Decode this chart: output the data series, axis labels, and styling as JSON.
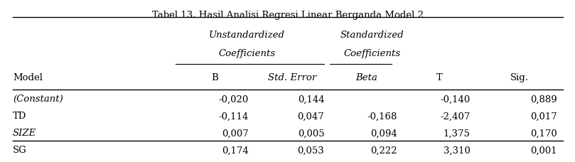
{
  "title": "Tabel 13. Hasil Analisi Regresi Linear Berganda Model 2",
  "header_row1": [
    "",
    "Unstandardized",
    "",
    "Standardized",
    "",
    ""
  ],
  "header_row2": [
    "",
    "Coefficients",
    "",
    "Coefficients",
    "",
    ""
  ],
  "header_row3": [
    "Model",
    "B",
    "Std. Error",
    "Beta",
    "T",
    "Sig."
  ],
  "rows": [
    [
      "(Constant)",
      "-0,020",
      "0,144",
      "",
      "-0,140",
      "0,889"
    ],
    [
      "TD",
      "-0,114",
      "0,047",
      "-0,168",
      "-2,407",
      "0,017"
    ],
    [
      "SIZE",
      "0,007",
      "0,005",
      "0,094",
      "1,375",
      "0,170"
    ],
    [
      "SG",
      "0,174",
      "0,053",
      "0,222",
      "3,310",
      "0,001"
    ]
  ],
  "italic_model_rows": [
    "(Constant)",
    "SIZE"
  ],
  "background_color": "#ffffff",
  "font_size": 9.5
}
